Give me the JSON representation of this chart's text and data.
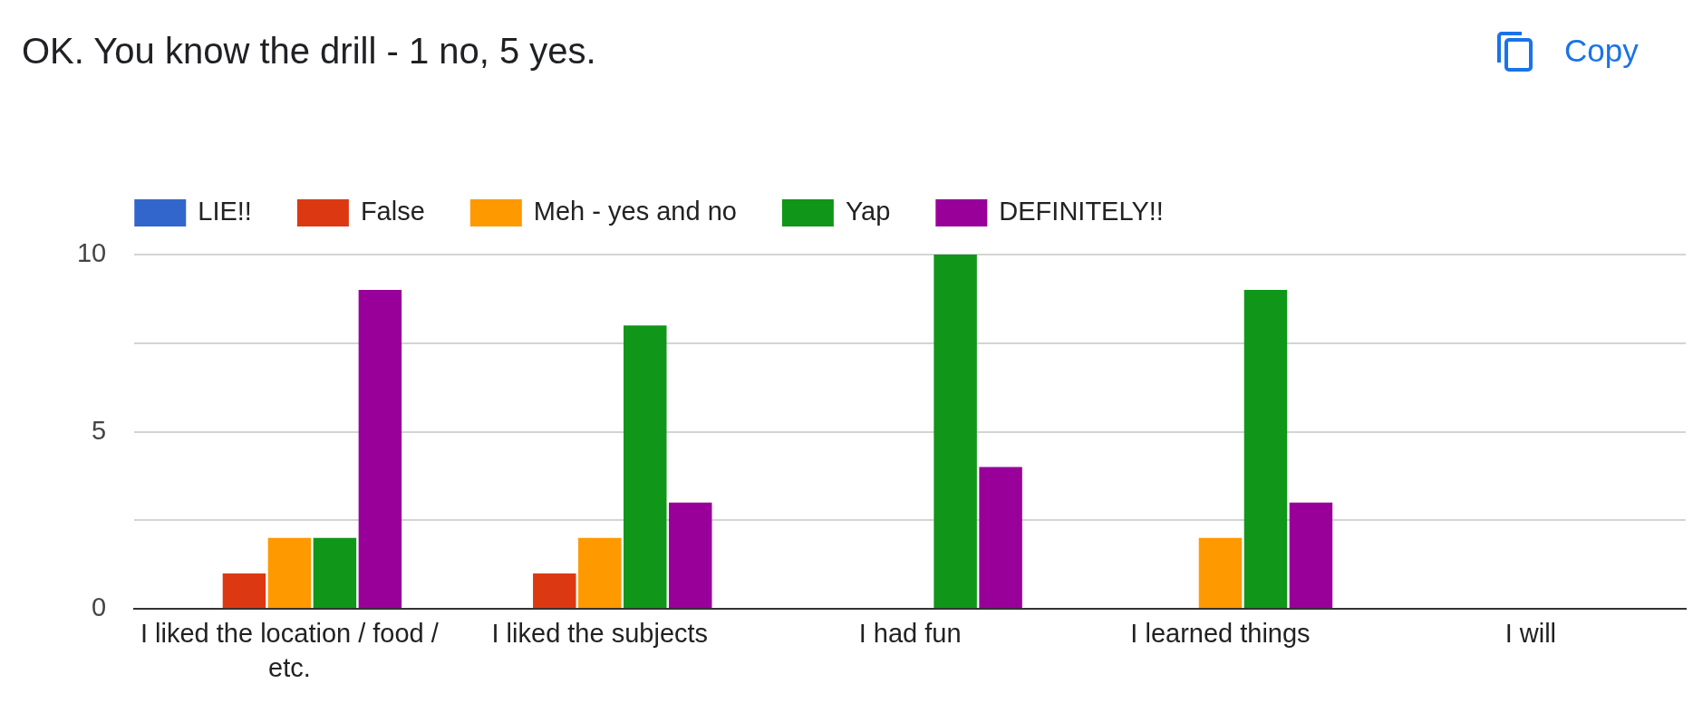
{
  "chart_data": {
    "type": "bar",
    "title": "OK. You know the drill - 1 no, 5 yes.",
    "annotations": [
      "Copy"
    ],
    "categories": [
      "I liked the location / food / etc.",
      "I liked the subjects",
      "I had fun",
      "I learned things",
      "I will"
    ],
    "series": [
      {
        "name": "LIE!!",
        "color": "#3366cc",
        "values": [
          0,
          0,
          0,
          0,
          null
        ]
      },
      {
        "name": "False",
        "color": "#dc3912",
        "values": [
          1,
          1,
          0,
          0,
          null
        ]
      },
      {
        "name": "Meh - yes and no",
        "color": "#ff9900",
        "values": [
          2,
          2,
          0,
          2,
          null
        ]
      },
      {
        "name": "Yap",
        "color": "#109618",
        "values": [
          2,
          8,
          10,
          9,
          null
        ]
      },
      {
        "name": "DEFINITELY!!",
        "color": "#990099",
        "values": [
          9,
          3,
          4,
          3,
          null
        ]
      }
    ],
    "ylim": [
      0,
      10
    ],
    "yticks": [
      0,
      {
        "value": 2.5,
        "label": null
      },
      5,
      {
        "value": 7.5,
        "label": null
      },
      10
    ],
    "grid": "y",
    "legend": "top left"
  }
}
